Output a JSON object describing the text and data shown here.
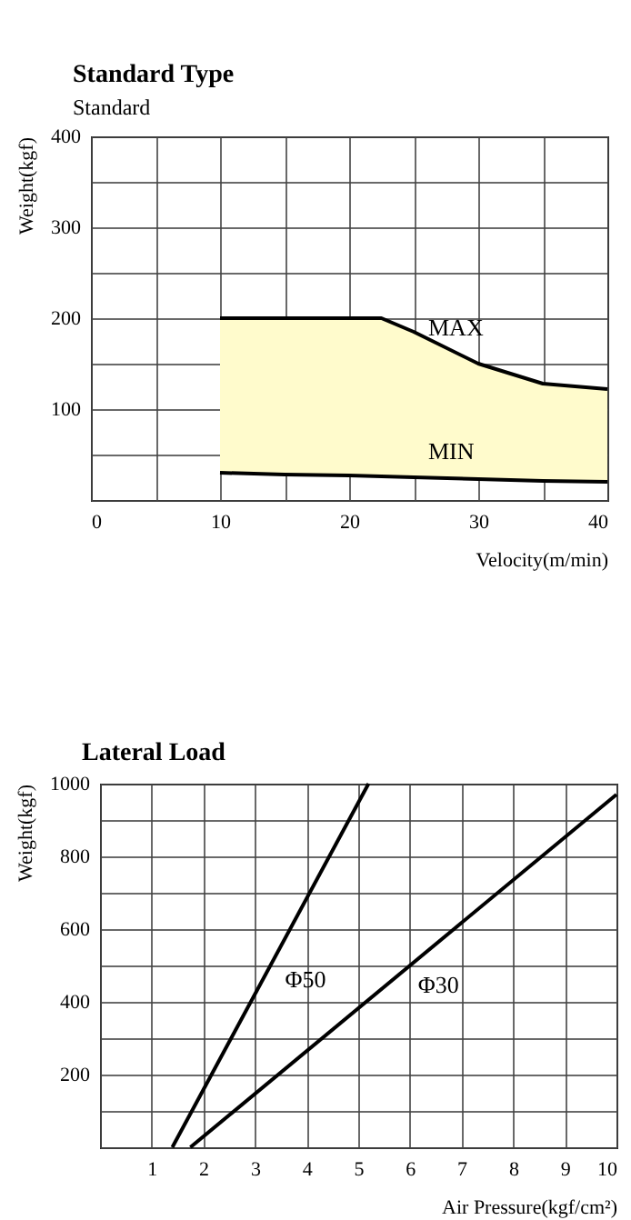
{
  "chart_data": [
    {
      "type": "line",
      "title": "Standard Type",
      "subtitle": "Standard",
      "xlabel": "Velocity(m/min)",
      "ylabel": "Weight(kgf)",
      "x": [
        10,
        15,
        20,
        22.5,
        25,
        30,
        35,
        40
      ],
      "series": [
        {
          "name": "MAX",
          "color": "#000000",
          "values": [
            200,
            200,
            200,
            200,
            185,
            150,
            128,
            122
          ],
          "lower": [
            30,
            28,
            27,
            26,
            25,
            23,
            21,
            20
          ],
          "upper": [
            200,
            200,
            200,
            200,
            185,
            150,
            128,
            122
          ]
        },
        {
          "name": "MIN",
          "color": "#000000",
          "values": [
            30,
            28,
            27,
            26,
            25,
            23,
            21,
            20
          ]
        }
      ],
      "xlim": [
        0,
        40
      ],
      "xticks": [
        0,
        {
          "value": 5,
          "label": null
        },
        10,
        {
          "value": 15,
          "label": null
        },
        20,
        {
          "value": 25,
          "label": null
        },
        30,
        {
          "value": 35,
          "label": null
        },
        40
      ],
      "ylim": [
        0,
        400
      ],
      "yticks": [
        {
          "value": 0,
          "label": null
        },
        {
          "value": 50,
          "label": null
        },
        100,
        {
          "value": 150,
          "label": null
        },
        200,
        {
          "value": 250,
          "label": null
        },
        300,
        {
          "value": 350,
          "label": null
        },
        400
      ],
      "grid": true,
      "marker": "none",
      "line_style": "solid"
    },
    {
      "type": "line",
      "title": "Lateral Load",
      "xlabel": "Air Pressure(kgf/cm²)",
      "ylabel": "Weight(kgf)",
      "series": [
        {
          "name": "Φ50",
          "color": "#000000",
          "x": [
            1.4,
            5.2
          ],
          "values": [
            0,
            1000
          ]
        },
        {
          "name": "Φ30",
          "color": "#000000",
          "x": [
            1.75,
            10
          ],
          "values": [
            0,
            970
          ]
        }
      ],
      "xlim": [
        0,
        10
      ],
      "xticks": [
        {
          "value": 0,
          "label": null
        },
        1,
        2,
        3,
        4,
        5,
        6,
        7,
        8,
        9,
        10
      ],
      "ylim": [
        0,
        1000
      ],
      "yticks": [
        {
          "value": 0,
          "label": null
        },
        {
          "value": 100,
          "label": null
        },
        200,
        {
          "value": 300,
          "label": null
        },
        400,
        {
          "value": 500,
          "label": null
        },
        600,
        {
          "value": 700,
          "label": null
        },
        800,
        {
          "value": 900,
          "label": null
        },
        {
          "value": 1000,
          "label": "1000"
        }
      ],
      "grid": true,
      "marker": "none",
      "line_style": "solid"
    }
  ]
}
